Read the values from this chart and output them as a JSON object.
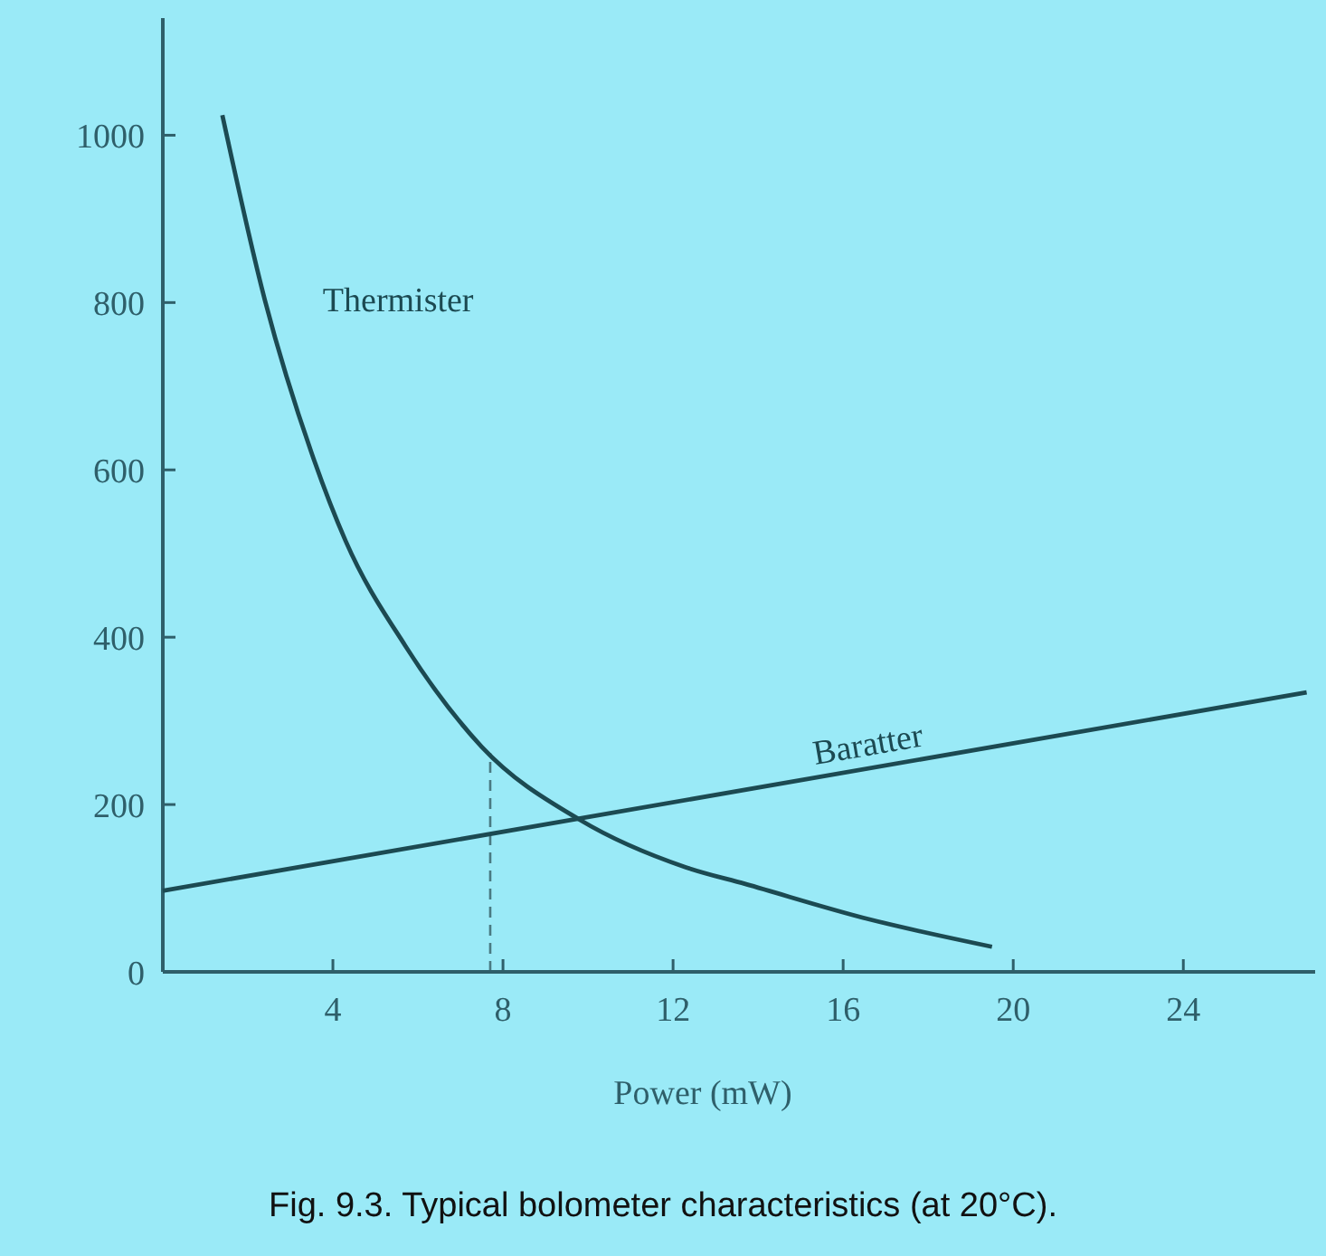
{
  "chart_data": {
    "type": "line",
    "xlabel": "Power (mW)",
    "annotations": [
      "Fig. 9.3. Typical bolometer characteristics (at 20°C)."
    ],
    "xlim": [
      0,
      27.1
    ],
    "xticks": [
      4,
      8,
      12,
      16,
      20,
      24
    ],
    "ylim": [
      0,
      1140
    ],
    "yticks": [
      0,
      200,
      400,
      600,
      800,
      1000
    ],
    "grid": false,
    "legend": false,
    "marker": "none",
    "series": [
      {
        "name": "Thermister",
        "color": "#1c4a52",
        "x": [
          1.4,
          2.4,
          3.5,
          4.3,
          5.7,
          7.5,
          9.8,
          12.3,
          13.7,
          16.6,
          19.5
        ],
        "values": [
          1024,
          803,
          620,
          515,
          390,
          269,
          182,
          125,
          105,
          63,
          30
        ]
      },
      {
        "name": "Baratter",
        "color": "#1c4a52",
        "x": [
          0,
          26.9
        ],
        "values": [
          97,
          334
        ]
      }
    ],
    "ref_lines": [
      {
        "axis": "x",
        "value": 7.7,
        "line_style": "dashed",
        "color": "#4a7a82"
      }
    ]
  }
}
